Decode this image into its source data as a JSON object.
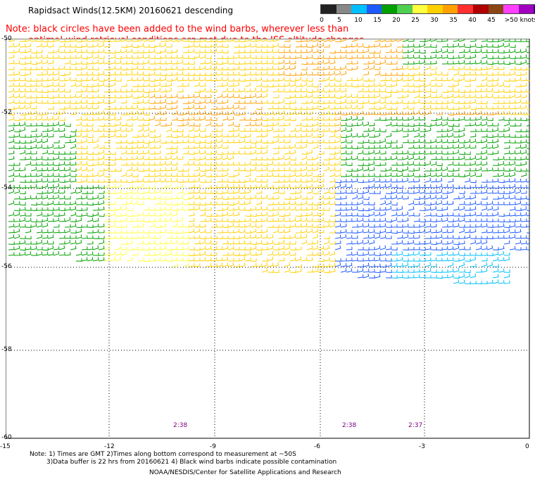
{
  "title": "Rapidsact Winds(12.5KM) 20160621 descending",
  "note": {
    "line1": "Note: black circles have been added to the wind barbs, wherever less than",
    "line2": "optimal wind retrieval conditions are met due to the ISS altitude changes."
  },
  "legend": {
    "labels": [
      "0",
      "5",
      "10",
      "15",
      "20",
      "25",
      "30",
      "35",
      "40",
      "45",
      ">50 knots"
    ],
    "colors": [
      "#222222",
      "#888888",
      "#00bfff",
      "#1e5aff",
      "#00a000",
      "#50d050",
      "#ffff40",
      "#ffd000",
      "#ffa000",
      "#ff3030",
      "#b00000",
      "#8b4513",
      "#ff40ff",
      "#a000c0",
      "#400080"
    ]
  },
  "axes": {
    "lat_labels": [
      "-50",
      "-52",
      "-54",
      "-56",
      "-58",
      "-60"
    ],
    "lon_labels": [
      "-15",
      "-12",
      "-9",
      "-6",
      "-3",
      "0"
    ]
  },
  "times": [
    "2:38",
    "2:38",
    "2:37"
  ],
  "footnotes": {
    "line1": "Note: 1) Times are GMT 2)Times along bottom correspond to measurement at ~50S",
    "line2": "3)Data buffer is 22 hrs from 20160621 4) Black wind barbs indicate possible contamination"
  },
  "credit": "NOAA/NESDIS/Center for Satellite Applications and Research"
}
